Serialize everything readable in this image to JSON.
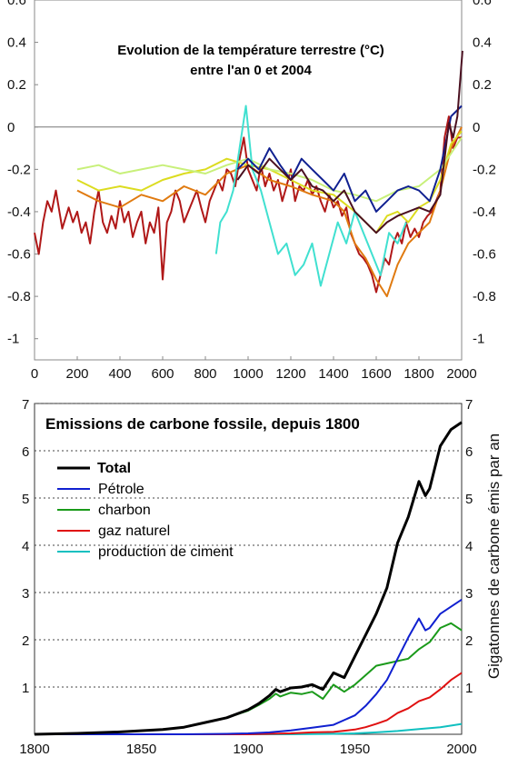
{
  "chart_data": [
    {
      "type": "line",
      "title": "Evolution de la température terrestre (°C)",
      "subtitle": "entre l'an 0 et 2004",
      "xlim": [
        0,
        2000
      ],
      "ylim": [
        -1.1,
        0.6
      ],
      "xticks": [
        0,
        200,
        400,
        600,
        800,
        1000,
        1200,
        1400,
        1600,
        1800,
        2000
      ],
      "yticks": [
        0.6,
        0.4,
        0.2,
        0,
        -0.2,
        -0.4,
        -0.6,
        -0.8,
        -1
      ],
      "ytick_labels": [
        "0.6",
        "0.4",
        "0.2",
        "0",
        "-0.2",
        "-0.4",
        "-0.6",
        "-0.8",
        "-1"
      ],
      "series": [
        {
          "color": "#b01818",
          "x": [
            0,
            20,
            40,
            60,
            80,
            100,
            130,
            160,
            180,
            200,
            220,
            240,
            260,
            280,
            300,
            320,
            340,
            360,
            380,
            400,
            420,
            440,
            460,
            480,
            500,
            520,
            540,
            560,
            580,
            600,
            620,
            640,
            660,
            680,
            700,
            720,
            740,
            760,
            780,
            800,
            820,
            840,
            860,
            880,
            900,
            920,
            940,
            960,
            980,
            1000,
            1020,
            1040,
            1060,
            1080,
            1100,
            1120,
            1140,
            1160,
            1180,
            1200,
            1220,
            1240,
            1260,
            1280,
            1300,
            1320,
            1340,
            1360,
            1380,
            1400,
            1420,
            1440,
            1460,
            1480,
            1500,
            1520,
            1540,
            1560,
            1580,
            1600,
            1620,
            1640,
            1660,
            1680,
            1700,
            1720,
            1740,
            1760,
            1780,
            1800,
            1820,
            1840,
            1860,
            1880,
            1900,
            1920,
            1940,
            1960,
            1980,
            2000
          ],
          "values": [
            -0.5,
            -0.6,
            -0.45,
            -0.35,
            -0.4,
            -0.3,
            -0.48,
            -0.38,
            -0.45,
            -0.4,
            -0.5,
            -0.45,
            -0.55,
            -0.4,
            -0.3,
            -0.45,
            -0.5,
            -0.42,
            -0.48,
            -0.35,
            -0.45,
            -0.4,
            -0.52,
            -0.45,
            -0.4,
            -0.55,
            -0.45,
            -0.5,
            -0.38,
            -0.72,
            -0.45,
            -0.4,
            -0.3,
            -0.35,
            -0.45,
            -0.4,
            -0.35,
            -0.3,
            -0.38,
            -0.45,
            -0.35,
            -0.3,
            -0.25,
            -0.3,
            -0.2,
            -0.22,
            -0.28,
            -0.15,
            -0.05,
            -0.2,
            -0.25,
            -0.3,
            -0.18,
            -0.28,
            -0.22,
            -0.3,
            -0.25,
            -0.35,
            -0.28,
            -0.2,
            -0.35,
            -0.28,
            -0.3,
            -0.25,
            -0.32,
            -0.28,
            -0.35,
            -0.4,
            -0.32,
            -0.38,
            -0.35,
            -0.42,
            -0.38,
            -0.5,
            -0.55,
            -0.6,
            -0.62,
            -0.65,
            -0.7,
            -0.78,
            -0.7,
            -0.62,
            -0.65,
            -0.55,
            -0.5,
            -0.55,
            -0.45,
            -0.52,
            -0.48,
            -0.52,
            -0.45,
            -0.42,
            -0.4,
            -0.35,
            -0.3,
            -0.05,
            0.05,
            -0.1,
            -0.05,
            -0.05
          ]
        },
        {
          "color": "#e07a10",
          "x": [
            200,
            300,
            400,
            500,
            600,
            700,
            800,
            900,
            1000,
            1100,
            1200,
            1300,
            1400,
            1450,
            1500,
            1550,
            1600,
            1650,
            1700,
            1750,
            1800,
            1850,
            1900,
            1950,
            2000
          ],
          "values": [
            -0.3,
            -0.35,
            -0.38,
            -0.32,
            -0.35,
            -0.28,
            -0.32,
            -0.22,
            -0.18,
            -0.25,
            -0.28,
            -0.32,
            -0.35,
            -0.4,
            -0.55,
            -0.62,
            -0.72,
            -0.8,
            -0.65,
            -0.55,
            -0.5,
            -0.45,
            -0.3,
            -0.1,
            0.0
          ]
        },
        {
          "color": "#dcdc20",
          "x": [
            200,
            300,
            400,
            500,
            600,
            700,
            800,
            900,
            1000,
            1100,
            1200,
            1300,
            1400,
            1500,
            1550,
            1600,
            1650,
            1700,
            1750,
            1800,
            1850,
            1900,
            1950,
            2000
          ],
          "values": [
            -0.25,
            -0.3,
            -0.28,
            -0.3,
            -0.25,
            -0.22,
            -0.2,
            -0.15,
            -0.18,
            -0.2,
            -0.25,
            -0.3,
            -0.32,
            -0.4,
            -0.45,
            -0.5,
            -0.42,
            -0.4,
            -0.45,
            -0.38,
            -0.35,
            -0.25,
            -0.08,
            -0.02
          ]
        },
        {
          "color": "#c8f07a",
          "x": [
            200,
            300,
            400,
            500,
            600,
            700,
            800,
            900,
            1000,
            1100,
            1200,
            1300,
            1400,
            1500,
            1600,
            1700,
            1800,
            1900,
            2000
          ],
          "values": [
            -0.2,
            -0.18,
            -0.22,
            -0.2,
            -0.18,
            -0.2,
            -0.22,
            -0.18,
            -0.15,
            -0.2,
            -0.22,
            -0.25,
            -0.3,
            -0.32,
            -0.35,
            -0.3,
            -0.28,
            -0.2,
            -0.05
          ]
        },
        {
          "color": "#40e0d0",
          "x": [
            850,
            870,
            900,
            930,
            960,
            990,
            1020,
            1060,
            1100,
            1140,
            1180,
            1220,
            1260,
            1300,
            1340,
            1380,
            1420,
            1460,
            1500,
            1540,
            1580,
            1620,
            1660,
            1700,
            1740
          ],
          "values": [
            -0.6,
            -0.45,
            -0.4,
            -0.3,
            -0.1,
            0.1,
            -0.2,
            -0.3,
            -0.45,
            -0.6,
            -0.55,
            -0.7,
            -0.65,
            -0.55,
            -0.75,
            -0.6,
            -0.45,
            -0.55,
            -0.4,
            -0.5,
            -0.6,
            -0.7,
            -0.5,
            -0.55,
            -0.45
          ]
        },
        {
          "color": "#102090",
          "x": [
            950,
            1000,
            1050,
            1100,
            1150,
            1200,
            1250,
            1300,
            1350,
            1400,
            1450,
            1500,
            1550,
            1600,
            1650,
            1700,
            1750,
            1800,
            1850,
            1900,
            1950,
            2000
          ],
          "values": [
            -0.2,
            -0.15,
            -0.2,
            -0.1,
            -0.18,
            -0.25,
            -0.15,
            -0.2,
            -0.25,
            -0.3,
            -0.22,
            -0.35,
            -0.3,
            -0.4,
            -0.35,
            -0.3,
            -0.28,
            -0.3,
            -0.35,
            -0.2,
            0.05,
            0.1
          ]
        },
        {
          "color": "#4a1020",
          "x": [
            950,
            1000,
            1050,
            1100,
            1150,
            1200,
            1250,
            1300,
            1350,
            1400,
            1450,
            1500,
            1550,
            1600,
            1650,
            1700,
            1750,
            1800,
            1850,
            1900,
            1940,
            1960,
            1980,
            2004
          ],
          "values": [
            -0.25,
            -0.18,
            -0.22,
            -0.15,
            -0.2,
            -0.25,
            -0.2,
            -0.28,
            -0.3,
            -0.35,
            -0.3,
            -0.4,
            -0.45,
            -0.5,
            -0.45,
            -0.42,
            -0.4,
            -0.38,
            -0.4,
            -0.32,
            0.02,
            -0.05,
            0.05,
            0.36
          ]
        }
      ]
    },
    {
      "type": "line",
      "title": "Emissions de carbone fossile, depuis 1800",
      "ylabel": "Gigatonnes de carbone émis par an",
      "xlim": [
        1800,
        2000
      ],
      "ylim": [
        0,
        7
      ],
      "xticks": [
        1800,
        1850,
        1900,
        1950,
        2000
      ],
      "yticks": [
        1,
        2,
        3,
        4,
        5,
        6,
        7
      ],
      "legend_position": "top-left",
      "series": [
        {
          "name": "Total",
          "color": "#000000",
          "x": [
            1800,
            1820,
            1840,
            1860,
            1870,
            1880,
            1890,
            1900,
            1905,
            1910,
            1913,
            1915,
            1920,
            1925,
            1930,
            1935,
            1940,
            1945,
            1950,
            1955,
            1960,
            1965,
            1970,
            1975,
            1980,
            1983,
            1985,
            1990,
            1995,
            2000
          ],
          "values": [
            0.0,
            0.02,
            0.05,
            0.1,
            0.15,
            0.25,
            0.35,
            0.52,
            0.65,
            0.82,
            0.95,
            0.9,
            0.98,
            1.0,
            1.05,
            0.95,
            1.3,
            1.2,
            1.65,
            2.1,
            2.55,
            3.1,
            4.05,
            4.6,
            5.35,
            5.05,
            5.2,
            6.1,
            6.45,
            6.6
          ]
        },
        {
          "name": "Pétrole",
          "color": "#1020d0",
          "x": [
            1800,
            1870,
            1890,
            1900,
            1910,
            1920,
            1930,
            1940,
            1950,
            1955,
            1960,
            1965,
            1970,
            1975,
            1980,
            1983,
            1985,
            1990,
            1995,
            2000
          ],
          "values": [
            0.0,
            0.0,
            0.01,
            0.02,
            0.04,
            0.08,
            0.14,
            0.2,
            0.4,
            0.6,
            0.85,
            1.15,
            1.6,
            2.05,
            2.45,
            2.2,
            2.25,
            2.55,
            2.7,
            2.85
          ]
        },
        {
          "name": "charbon",
          "color": "#1a9a1a",
          "x": [
            1800,
            1820,
            1840,
            1860,
            1870,
            1880,
            1890,
            1900,
            1905,
            1910,
            1913,
            1915,
            1920,
            1925,
            1930,
            1935,
            1940,
            1945,
            1950,
            1955,
            1960,
            1965,
            1970,
            1975,
            1980,
            1985,
            1990,
            1995,
            2000
          ],
          "values": [
            0.0,
            0.02,
            0.05,
            0.1,
            0.15,
            0.25,
            0.35,
            0.5,
            0.62,
            0.75,
            0.86,
            0.8,
            0.88,
            0.85,
            0.9,
            0.75,
            1.05,
            0.9,
            1.05,
            1.25,
            1.45,
            1.5,
            1.55,
            1.6,
            1.8,
            1.95,
            2.25,
            2.35,
            2.2
          ]
        },
        {
          "name": "gaz naturel",
          "color": "#e01010",
          "x": [
            1800,
            1900,
            1920,
            1930,
            1940,
            1950,
            1955,
            1960,
            1965,
            1970,
            1975,
            1980,
            1985,
            1990,
            1995,
            2000
          ],
          "values": [
            0.0,
            0.0,
            0.02,
            0.04,
            0.05,
            0.1,
            0.15,
            0.22,
            0.3,
            0.45,
            0.55,
            0.7,
            0.78,
            0.95,
            1.15,
            1.3
          ]
        },
        {
          "name": "production de ciment",
          "color": "#10c0c0",
          "x": [
            1800,
            1920,
            1940,
            1950,
            1960,
            1970,
            1980,
            1990,
            2000
          ],
          "values": [
            0.0,
            0.0,
            0.01,
            0.02,
            0.04,
            0.07,
            0.11,
            0.15,
            0.22
          ]
        }
      ]
    }
  ]
}
